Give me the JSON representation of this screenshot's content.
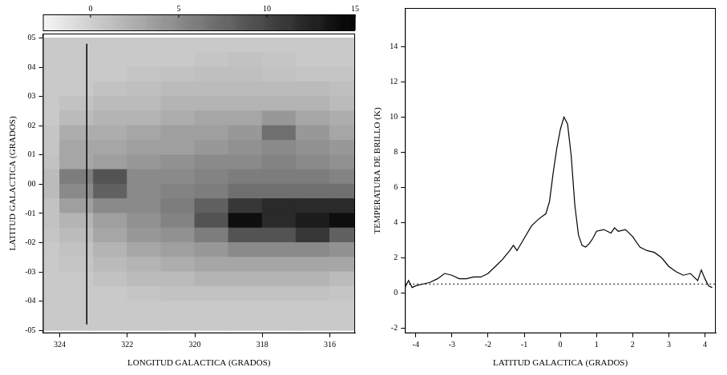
{
  "chart_data": [
    {
      "type": "heatmap",
      "xlabel": "LONGITUD GALACTICA (GRADOS)",
      "ylabel": "LATITUD GALACTICA (GRADOS)",
      "x": [
        324.5,
        323.5,
        322.5,
        321.5,
        320.5,
        319.5,
        318.5,
        317.5,
        316.5,
        315.5
      ],
      "y": [
        4.75,
        4.25,
        3.75,
        3.25,
        2.75,
        2.25,
        1.75,
        1.25,
        0.75,
        0.25,
        -0.25,
        -0.75,
        -1.25,
        -1.75,
        -2.25,
        -2.75,
        -3.25,
        -3.75,
        -4.25,
        -4.75
      ],
      "cells": [
        [
          0.5,
          0.5,
          0.5,
          0.5,
          0.5,
          0.5,
          0.5,
          0.5,
          0.5,
          0.5
        ],
        [
          0.5,
          0.5,
          0.5,
          0.5,
          0.5,
          0.8,
          1,
          0.8,
          0.5,
          0.5
        ],
        [
          0.5,
          0.5,
          0.5,
          0.8,
          1,
          1.2,
          1.2,
          1,
          0.8,
          0.8
        ],
        [
          0.5,
          0.5,
          1,
          1.2,
          1.5,
          1.5,
          1.5,
          1.5,
          1.5,
          1.2
        ],
        [
          0.5,
          1,
          1.5,
          1.5,
          2,
          2,
          2,
          2,
          2,
          1.5
        ],
        [
          0.5,
          1.5,
          2,
          2,
          2.5,
          3,
          3,
          4,
          3,
          2.5
        ],
        [
          0.8,
          2.5,
          2.5,
          3,
          3.5,
          3.5,
          4,
          7,
          4,
          3
        ],
        [
          0.8,
          3,
          3,
          3.5,
          3.5,
          4,
          4.5,
          5,
          4.5,
          4
        ],
        [
          1,
          3,
          3.5,
          4,
          4.5,
          5,
          5,
          5.5,
          5,
          4.5
        ],
        [
          1.5,
          6,
          9,
          5,
          5,
          5.5,
          6,
          6,
          6,
          5.5
        ],
        [
          1.5,
          5,
          8,
          5,
          5.5,
          6,
          7,
          7,
          7,
          7
        ],
        [
          1,
          3.5,
          5,
          5,
          6,
          8,
          11,
          12,
          12,
          12
        ],
        [
          1,
          2,
          3.5,
          4.5,
          5.5,
          9,
          14,
          12,
          13,
          14
        ],
        [
          0.8,
          1.5,
          3,
          4,
          4.5,
          6,
          9,
          9,
          11,
          8
        ],
        [
          0.5,
          1,
          2,
          3,
          3.5,
          4,
          5,
          5,
          5,
          4.5
        ],
        [
          0.5,
          0.8,
          1.5,
          2,
          2.5,
          3,
          3,
          3,
          3,
          3
        ],
        [
          0.5,
          0.5,
          1,
          1.5,
          1.5,
          2,
          2,
          2,
          2,
          1.5
        ],
        [
          0.5,
          0.5,
          0.5,
          0.8,
          1,
          1,
          1,
          1,
          1,
          0.8
        ],
        [
          0.5,
          0.5,
          0.5,
          0.5,
          0.5,
          0.5,
          0.5,
          0.5,
          0.5,
          0.5
        ],
        [
          0.5,
          0.5,
          0.5,
          0.5,
          0.5,
          0.5,
          0.5,
          0.5,
          0.5,
          0.5
        ]
      ],
      "xlim": [
        324.5,
        315.25
      ],
      "ylim": [
        -5.1,
        5.15
      ],
      "xticks": [
        324,
        322,
        320,
        318,
        316
      ],
      "yticks": [
        {
          "value": 5,
          "label": "05"
        },
        {
          "value": 4,
          "label": "04"
        },
        {
          "value": 3,
          "label": "03"
        },
        {
          "value": 2,
          "label": "02"
        },
        {
          "value": 1,
          "label": "01"
        },
        {
          "value": 0,
          "label": "00"
        },
        {
          "value": -1,
          "label": "-01"
        },
        {
          "value": -2,
          "label": "-02"
        },
        {
          "value": -3,
          "label": "-03"
        },
        {
          "value": -4,
          "label": "-04"
        },
        {
          "value": -5,
          "label": "-05"
        }
      ],
      "colorbar_range": [
        -2.7,
        15
      ],
      "colorbar_ticks": [
        0,
        5,
        10,
        15
      ],
      "lines": [
        {
          "x": [
            323.2,
            323.2
          ],
          "y": [
            -4.8,
            4.8
          ],
          "color": "#000000",
          "line_style": "solid"
        }
      ]
    },
    {
      "type": "line",
      "xlabel": "LATITUD GALACTICA (GRADOS)",
      "ylabel": "TEMPERATURA DE BRILLO (K)",
      "x": [
        -4.3,
        -4.2,
        -4.1,
        -4.0,
        -3.8,
        -3.6,
        -3.4,
        -3.2,
        -3.0,
        -2.8,
        -2.6,
        -2.4,
        -2.2,
        -2.0,
        -1.8,
        -1.6,
        -1.4,
        -1.3,
        -1.2,
        -1.0,
        -0.8,
        -0.6,
        -0.4,
        -0.3,
        -0.2,
        -0.1,
        0.0,
        0.1,
        0.2,
        0.3,
        0.4,
        0.5,
        0.6,
        0.7,
        0.8,
        0.9,
        1.0,
        1.2,
        1.4,
        1.5,
        1.6,
        1.8,
        2.0,
        2.2,
        2.4,
        2.6,
        2.8,
        3.0,
        3.2,
        3.4,
        3.6,
        3.8,
        3.9,
        4.0,
        4.1,
        4.2
      ],
      "values": [
        0.3,
        0.7,
        0.3,
        0.4,
        0.5,
        0.6,
        0.8,
        1.1,
        1.0,
        0.8,
        0.8,
        0.9,
        0.9,
        1.1,
        1.5,
        1.9,
        2.4,
        2.7,
        2.4,
        3.1,
        3.8,
        4.2,
        4.5,
        5.2,
        6.8,
        8.2,
        9.3,
        10.0,
        9.6,
        7.8,
        5.0,
        3.3,
        2.7,
        2.6,
        2.8,
        3.1,
        3.5,
        3.6,
        3.4,
        3.7,
        3.5,
        3.6,
        3.2,
        2.6,
        2.4,
        2.3,
        2.0,
        1.5,
        1.2,
        1.0,
        1.1,
        0.7,
        1.3,
        0.8,
        0.4,
        0.3
      ],
      "color": "#000000",
      "xlim": [
        -4.3,
        4.3
      ],
      "ylim": [
        -2.3,
        16.2
      ],
      "xticks": [
        -4,
        -3,
        -2,
        -1,
        0,
        1,
        2,
        3,
        4
      ],
      "yticks": [
        -2,
        0,
        2,
        4,
        6,
        8,
        10,
        12,
        14
      ],
      "lines": [
        {
          "x": [
            -4.3,
            4.3
          ],
          "y": [
            0.5,
            0.5
          ],
          "color": "#000000",
          "line_style": "dotted"
        }
      ]
    }
  ]
}
